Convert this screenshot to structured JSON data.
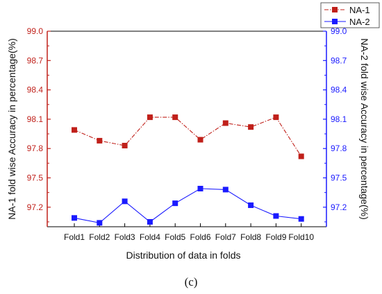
{
  "chart_data": {
    "type": "line",
    "categories": [
      "Fold1",
      "Fold2",
      "Fold3",
      "Fold4",
      "Fold5",
      "Fold6",
      "Fold7",
      "Fold8",
      "Fold9",
      "Fold10"
    ],
    "xlabel": "Distribution of data in folds",
    "ylabel_left": "NA-1 fold wise Accuracy in percentage(%)",
    "ylabel_right": "NA-2 fold wise Accuracy in percentage(%)",
    "ylim": [
      97.0,
      99.0
    ],
    "yticks": [
      "97.2",
      "97.5",
      "97.8",
      "98.1",
      "98.4",
      "98.7",
      "99.0"
    ],
    "ytick_values": [
      97.2,
      97.5,
      97.8,
      98.1,
      98.4,
      98.7,
      99.0
    ],
    "grid": false,
    "legend_position": "top-right",
    "series": [
      {
        "name": "NA-1",
        "axis": "left",
        "color": "#c0201a",
        "marker": "square",
        "line": "dash-dot",
        "values": [
          97.99,
          97.88,
          97.83,
          98.12,
          98.12,
          97.89,
          98.06,
          98.02,
          98.12,
          97.72
        ]
      },
      {
        "name": "NA-2",
        "axis": "right",
        "color": "#1a1aff",
        "marker": "square",
        "line": "solid",
        "values": [
          97.09,
          97.04,
          97.26,
          97.05,
          97.24,
          97.39,
          97.38,
          97.22,
          97.11,
          97.08
        ]
      }
    ]
  },
  "caption": "(c)"
}
